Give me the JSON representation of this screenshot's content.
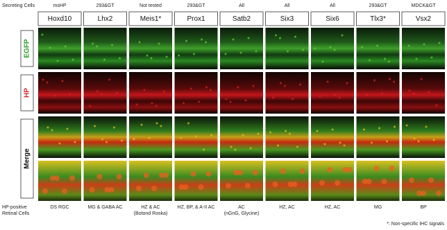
{
  "secreting_cells_heading": "Secreting Cells",
  "columns": [
    {
      "secreting": "msHP",
      "gene": "Hoxd10",
      "retinal": [
        "DS RGC"
      ]
    },
    {
      "secreting": "293&GT",
      "gene": "Lhx2",
      "retinal": [
        "MG & GABA AC"
      ]
    },
    {
      "secreting": "Not tested",
      "gene": "Meis1*",
      "retinal": [
        "HZ & AC",
        "(Botond Roska)"
      ]
    },
    {
      "secreting": "293&GT",
      "gene": "Prox1",
      "retinal": [
        "HZ, BP, & A-II AC"
      ]
    },
    {
      "secreting": "All",
      "gene": "Satb2",
      "retinal": [
        "AC",
        "(nGnG, Glycine)"
      ]
    },
    {
      "secreting": "All",
      "gene": "Six3",
      "retinal": [
        "HZ, AC"
      ]
    },
    {
      "secreting": "All",
      "gene": "Six6",
      "retinal": [
        "HZ, AC"
      ]
    },
    {
      "secreting": "293&GT",
      "gene": "Tlx3*",
      "retinal": [
        "MG"
      ]
    },
    {
      "secreting": "MDCK&GT",
      "gene": "Vsx2",
      "retinal": [
        "BP"
      ]
    }
  ],
  "row_labels": [
    "EGFP",
    "HP",
    "Merge"
  ],
  "retinal_cells_heading": [
    "HP-positive",
    "Retinal Cells"
  ],
  "footnote": "*: Non-specific IHC signals"
}
